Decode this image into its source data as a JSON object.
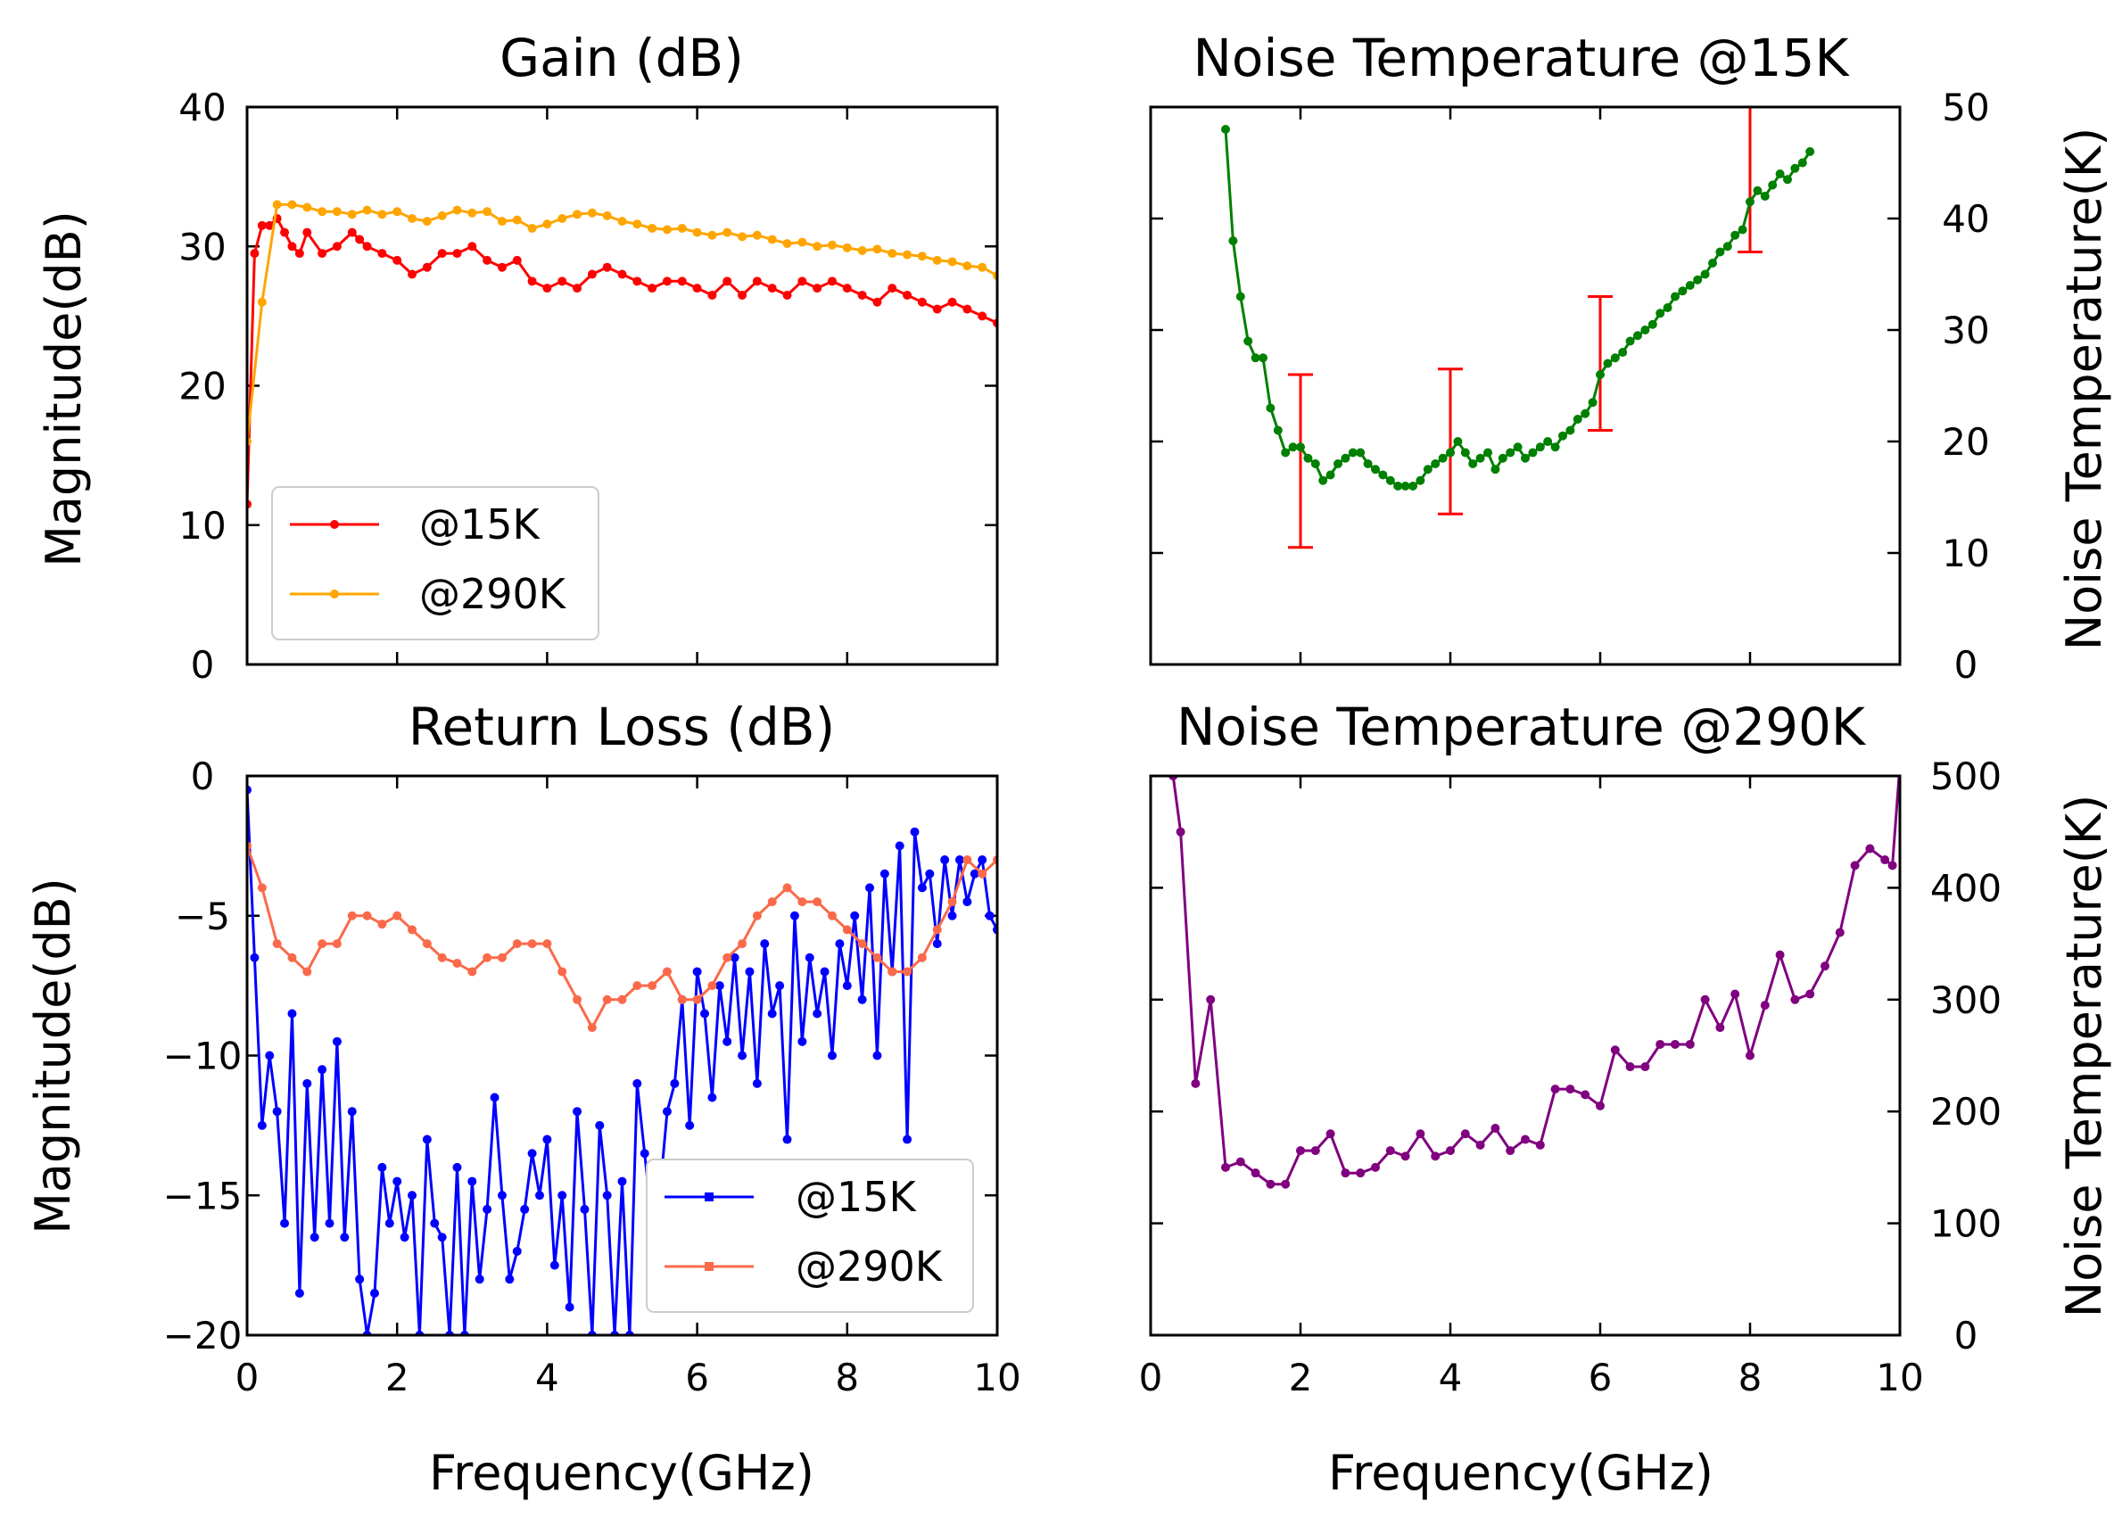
{
  "chart_data": [
    {
      "id": "gain",
      "type": "line",
      "title": "Gain (dB)",
      "ylabel": "Magnitude(dB)",
      "xlabel": "",
      "xlim": [
        0,
        10
      ],
      "ylim": [
        0,
        40
      ],
      "xticks": [
        0,
        2,
        4,
        6,
        8,
        10
      ],
      "yticks": [
        0,
        10,
        20,
        30,
        40
      ],
      "xticklabels_shown": false,
      "yticklabels_shown": true,
      "yaxis_side": "left",
      "grid": false,
      "legend": {
        "placement": "lower-left",
        "entries": [
          "@15K",
          "@290K"
        ]
      },
      "series": [
        {
          "name": "@15K",
          "color": "#ff0000",
          "x": [
            0,
            0.1,
            0.2,
            0.3,
            0.4,
            0.5,
            0.6,
            0.7,
            0.8,
            1.0,
            1.2,
            1.4,
            1.5,
            1.6,
            1.8,
            2.0,
            2.2,
            2.4,
            2.6,
            2.8,
            3.0,
            3.2,
            3.4,
            3.6,
            3.8,
            4.0,
            4.2,
            4.4,
            4.6,
            4.8,
            5.0,
            5.2,
            5.4,
            5.6,
            5.8,
            6.0,
            6.2,
            6.4,
            6.6,
            6.8,
            7.0,
            7.2,
            7.4,
            7.6,
            7.8,
            8.0,
            8.2,
            8.4,
            8.6,
            8.8,
            9.0,
            9.2,
            9.4,
            9.6,
            9.8,
            10.0
          ],
          "values": [
            11.5,
            29.5,
            31.5,
            31.5,
            32.0,
            31.0,
            30.0,
            29.5,
            31.0,
            29.5,
            30.0,
            31.0,
            30.5,
            30.0,
            29.5,
            29.0,
            28.0,
            28.5,
            29.5,
            29.5,
            30.0,
            29.0,
            28.5,
            29.0,
            27.5,
            27.0,
            27.5,
            27.0,
            28.0,
            28.5,
            28.0,
            27.5,
            27.0,
            27.5,
            27.5,
            27.0,
            26.5,
            27.5,
            26.5,
            27.5,
            27.0,
            26.5,
            27.5,
            27.0,
            27.5,
            27.0,
            26.5,
            26.0,
            27.0,
            26.5,
            26.0,
            25.5,
            26.0,
            25.5,
            25.0,
            24.5
          ]
        },
        {
          "name": "@290K",
          "color": "#ffa500",
          "x": [
            0,
            0.2,
            0.4,
            0.6,
            0.8,
            1.0,
            1.2,
            1.4,
            1.6,
            1.8,
            2.0,
            2.2,
            2.4,
            2.6,
            2.8,
            3.0,
            3.2,
            3.4,
            3.6,
            3.8,
            4.0,
            4.2,
            4.4,
            4.6,
            4.8,
            5.0,
            5.2,
            5.4,
            5.6,
            5.8,
            6.0,
            6.2,
            6.4,
            6.6,
            6.8,
            7.0,
            7.2,
            7.4,
            7.6,
            7.8,
            8.0,
            8.2,
            8.4,
            8.6,
            8.8,
            9.0,
            9.2,
            9.4,
            9.6,
            9.8,
            10.0
          ],
          "values": [
            16,
            26,
            33,
            33,
            32.8,
            32.5,
            32.5,
            32.3,
            32.6,
            32.3,
            32.5,
            32.0,
            31.8,
            32.2,
            32.6,
            32.4,
            32.5,
            31.8,
            31.9,
            31.3,
            31.6,
            32.0,
            32.3,
            32.4,
            32.2,
            31.8,
            31.6,
            31.3,
            31.2,
            31.3,
            31.0,
            30.8,
            31.0,
            30.7,
            30.8,
            30.5,
            30.2,
            30.3,
            30.0,
            30.1,
            29.9,
            29.7,
            29.8,
            29.5,
            29.4,
            29.3,
            29.0,
            28.9,
            28.6,
            28.5,
            27.9
          ]
        }
      ]
    },
    {
      "id": "nt15",
      "type": "line",
      "title": "Noise Temperature @15K",
      "ylabel": "Noise Temperature(K)",
      "xlabel": "",
      "xlim": [
        0,
        10
      ],
      "ylim": [
        0,
        50
      ],
      "xticks": [
        0,
        2,
        4,
        6,
        8,
        10
      ],
      "yticks": [
        0,
        10,
        20,
        30,
        40,
        50
      ],
      "xticklabels_shown": false,
      "yticklabels_shown": true,
      "yaxis_side": "right",
      "grid": false,
      "series": [
        {
          "name": "",
          "color": "#008000",
          "x": [
            1.0,
            1.1,
            1.2,
            1.3,
            1.4,
            1.5,
            1.6,
            1.7,
            1.8,
            1.9,
            2.0,
            2.1,
            2.2,
            2.3,
            2.4,
            2.5,
            2.6,
            2.7,
            2.8,
            2.9,
            3.0,
            3.1,
            3.2,
            3.3,
            3.4,
            3.5,
            3.6,
            3.7,
            3.8,
            3.9,
            4.0,
            4.1,
            4.2,
            4.3,
            4.4,
            4.5,
            4.6,
            4.7,
            4.8,
            4.9,
            5.0,
            5.1,
            5.2,
            5.3,
            5.4,
            5.5,
            5.6,
            5.7,
            5.8,
            5.9,
            6.0,
            6.1,
            6.2,
            6.3,
            6.4,
            6.5,
            6.6,
            6.7,
            6.8,
            6.9,
            7.0,
            7.1,
            7.2,
            7.3,
            7.4,
            7.5,
            7.6,
            7.7,
            7.8,
            7.9,
            8.0,
            8.1,
            8.2,
            8.3,
            8.4,
            8.5,
            8.6,
            8.7,
            8.8
          ],
          "values": [
            48,
            38,
            33,
            29,
            27.5,
            27.5,
            23,
            21,
            19,
            19.5,
            19.5,
            18.5,
            18,
            16.5,
            17,
            18,
            18.5,
            19,
            19,
            18,
            17.5,
            17,
            16.5,
            16,
            16,
            16,
            16.5,
            17.5,
            18,
            18.5,
            19,
            20,
            19,
            18,
            18.5,
            19,
            17.5,
            18.5,
            19,
            19.5,
            18.5,
            19,
            19.5,
            20,
            19.5,
            20.5,
            21,
            22,
            22.5,
            23.5,
            26,
            27,
            27.5,
            28,
            29,
            29.5,
            30,
            30.5,
            31.5,
            32,
            33,
            33.5,
            34,
            34.5,
            35,
            36,
            37,
            37.5,
            38.5,
            39,
            41.5,
            42.5,
            42,
            43,
            44,
            43.5,
            44.5,
            45,
            46
          ]
        }
      ],
      "errorbars": {
        "color": "#ff0000",
        "x": [
          2,
          4,
          6,
          8
        ],
        "low": [
          10.5,
          13.5,
          21,
          37
        ],
        "high": [
          26,
          26.5,
          33,
          50
        ]
      }
    },
    {
      "id": "rl",
      "type": "line",
      "title": "Return Loss (dB)",
      "ylabel": "Magnitude(dB)",
      "xlabel": "Frequency(GHz)",
      "xlim": [
        0,
        10
      ],
      "ylim": [
        -20,
        0
      ],
      "xticks": [
        0,
        2,
        4,
        6,
        8,
        10
      ],
      "yticks": [
        -20,
        -15,
        -10,
        -5,
        0
      ],
      "xticklabels_shown": true,
      "yticklabels_shown": true,
      "yaxis_side": "left",
      "grid": false,
      "legend": {
        "placement": "lower-right",
        "entries": [
          "@15K",
          "@290K"
        ]
      },
      "series": [
        {
          "name": "@15K",
          "color": "#0000ff",
          "x": [
            0.0,
            0.1,
            0.2,
            0.3,
            0.4,
            0.5,
            0.6,
            0.7,
            0.8,
            0.9,
            1.0,
            1.1,
            1.2,
            1.3,
            1.4,
            1.5,
            1.6,
            1.7,
            1.8,
            1.9,
            2.0,
            2.1,
            2.2,
            2.3,
            2.4,
            2.5,
            2.6,
            2.7,
            2.8,
            2.9,
            3.0,
            3.1,
            3.2,
            3.3,
            3.4,
            3.5,
            3.6,
            3.7,
            3.8,
            3.9,
            4.0,
            4.1,
            4.2,
            4.3,
            4.4,
            4.5,
            4.6,
            4.7,
            4.8,
            4.9,
            5.0,
            5.1,
            5.2,
            5.3,
            5.4,
            5.5,
            5.6,
            5.7,
            5.8,
            5.9,
            6.0,
            6.1,
            6.2,
            6.3,
            6.4,
            6.5,
            6.6,
            6.7,
            6.8,
            6.9,
            7.0,
            7.1,
            7.2,
            7.3,
            7.4,
            7.5,
            7.6,
            7.7,
            7.8,
            7.9,
            8.0,
            8.1,
            8.2,
            8.3,
            8.4,
            8.5,
            8.6,
            8.7,
            8.8,
            8.9,
            9.0,
            9.1,
            9.2,
            9.3,
            9.4,
            9.5,
            9.6,
            9.7,
            9.8,
            9.9,
            10.0
          ],
          "values": [
            -0.5,
            -6.5,
            -12.5,
            -10.0,
            -12.0,
            -16.0,
            -8.5,
            -18.5,
            -11.0,
            -16.5,
            -10.5,
            -16.0,
            -9.5,
            -16.5,
            -12.0,
            -18.0,
            -20.0,
            -18.5,
            -14.0,
            -16.0,
            -14.5,
            -16.5,
            -15.0,
            -20.0,
            -13.0,
            -16.0,
            -16.5,
            -20.0,
            -14.0,
            -20.0,
            -14.5,
            -18.0,
            -15.5,
            -11.5,
            -15.0,
            -18.0,
            -17.0,
            -15.5,
            -13.5,
            -15.0,
            -13.0,
            -17.5,
            -15.0,
            -19.0,
            -12.0,
            -15.5,
            -20.0,
            -12.5,
            -15.0,
            -20.0,
            -14.5,
            -20.0,
            -11.0,
            -13.5,
            -16.0,
            -15.0,
            -12.0,
            -11.0,
            -8.0,
            -12.5,
            -7.0,
            -8.5,
            -11.5,
            -7.5,
            -9.5,
            -6.5,
            -10.0,
            -7.0,
            -11.0,
            -6.0,
            -8.5,
            -7.5,
            -13.0,
            -5.0,
            -9.5,
            -6.5,
            -8.5,
            -7.0,
            -10.0,
            -6.0,
            -7.5,
            -5.0,
            -8.0,
            -4.0,
            -10.0,
            -3.5,
            -7.0,
            -2.5,
            -13.0,
            -2.0,
            -4.0,
            -3.5,
            -6.0,
            -3.0,
            -5.0,
            -3.0,
            -4.5,
            -3.5,
            -3.0,
            -5.0,
            -5.5
          ]
        },
        {
          "name": "@290K",
          "color": "#fa6a4a",
          "x": [
            0.0,
            0.2,
            0.4,
            0.6,
            0.8,
            1.0,
            1.2,
            1.4,
            1.6,
            1.8,
            2.0,
            2.2,
            2.4,
            2.6,
            2.8,
            3.0,
            3.2,
            3.4,
            3.6,
            3.8,
            4.0,
            4.2,
            4.4,
            4.6,
            4.8,
            5.0,
            5.2,
            5.4,
            5.6,
            5.8,
            6.0,
            6.2,
            6.4,
            6.6,
            6.8,
            7.0,
            7.2,
            7.4,
            7.6,
            7.8,
            8.0,
            8.2,
            8.4,
            8.6,
            8.8,
            9.0,
            9.2,
            9.4,
            9.6,
            9.8,
            10.0
          ],
          "values": [
            -2.5,
            -4.0,
            -6.0,
            -6.5,
            -7.0,
            -6.0,
            -6.0,
            -5.0,
            -5.0,
            -5.3,
            -5.0,
            -5.5,
            -6.0,
            -6.5,
            -6.7,
            -7.0,
            -6.5,
            -6.5,
            -6.0,
            -6.0,
            -6.0,
            -7.0,
            -8.0,
            -9.0,
            -8.0,
            -8.0,
            -7.5,
            -7.5,
            -7.0,
            -8.0,
            -8.0,
            -7.5,
            -6.5,
            -6.0,
            -5.0,
            -4.5,
            -4.0,
            -4.5,
            -4.5,
            -5.0,
            -5.5,
            -6.0,
            -6.5,
            -7.0,
            -7.0,
            -6.5,
            -5.5,
            -4.5,
            -3.0,
            -3.5,
            -3.0
          ]
        }
      ]
    },
    {
      "id": "nt290",
      "type": "line",
      "title": "Noise Temperature @290K",
      "ylabel": "Noise Temperature(K)",
      "xlabel": "Frequency(GHz)",
      "xlim": [
        0,
        10
      ],
      "ylim": [
        0,
        500
      ],
      "xticks": [
        0,
        2,
        4,
        6,
        8,
        10
      ],
      "yticks": [
        0,
        100,
        200,
        300,
        400,
        500
      ],
      "xticklabels_shown": true,
      "yticklabels_shown": true,
      "yaxis_side": "right",
      "grid": false,
      "series": [
        {
          "name": "",
          "color": "#800080",
          "x": [
            0.3,
            0.4,
            0.6,
            0.8,
            1.0,
            1.2,
            1.4,
            1.6,
            1.8,
            2.0,
            2.2,
            2.4,
            2.6,
            2.8,
            3.0,
            3.2,
            3.4,
            3.6,
            3.8,
            4.0,
            4.2,
            4.4,
            4.6,
            4.8,
            5.0,
            5.2,
            5.4,
            5.6,
            5.8,
            6.0,
            6.2,
            6.4,
            6.6,
            6.8,
            7.0,
            7.2,
            7.4,
            7.6,
            7.8,
            8.0,
            8.2,
            8.4,
            8.6,
            8.8,
            9.0,
            9.2,
            9.4,
            9.6,
            9.8,
            9.9,
            10.0
          ],
          "values": [
            500,
            450,
            225,
            300,
            150,
            155,
            145,
            135,
            135,
            165,
            165,
            180,
            145,
            145,
            150,
            165,
            160,
            180,
            160,
            165,
            180,
            170,
            185,
            165,
            175,
            170,
            220,
            220,
            215,
            205,
            255,
            240,
            240,
            260,
            260,
            260,
            300,
            275,
            305,
            250,
            295,
            340,
            300,
            305,
            330,
            360,
            420,
            435,
            425,
            420,
            510
          ]
        }
      ]
    }
  ]
}
